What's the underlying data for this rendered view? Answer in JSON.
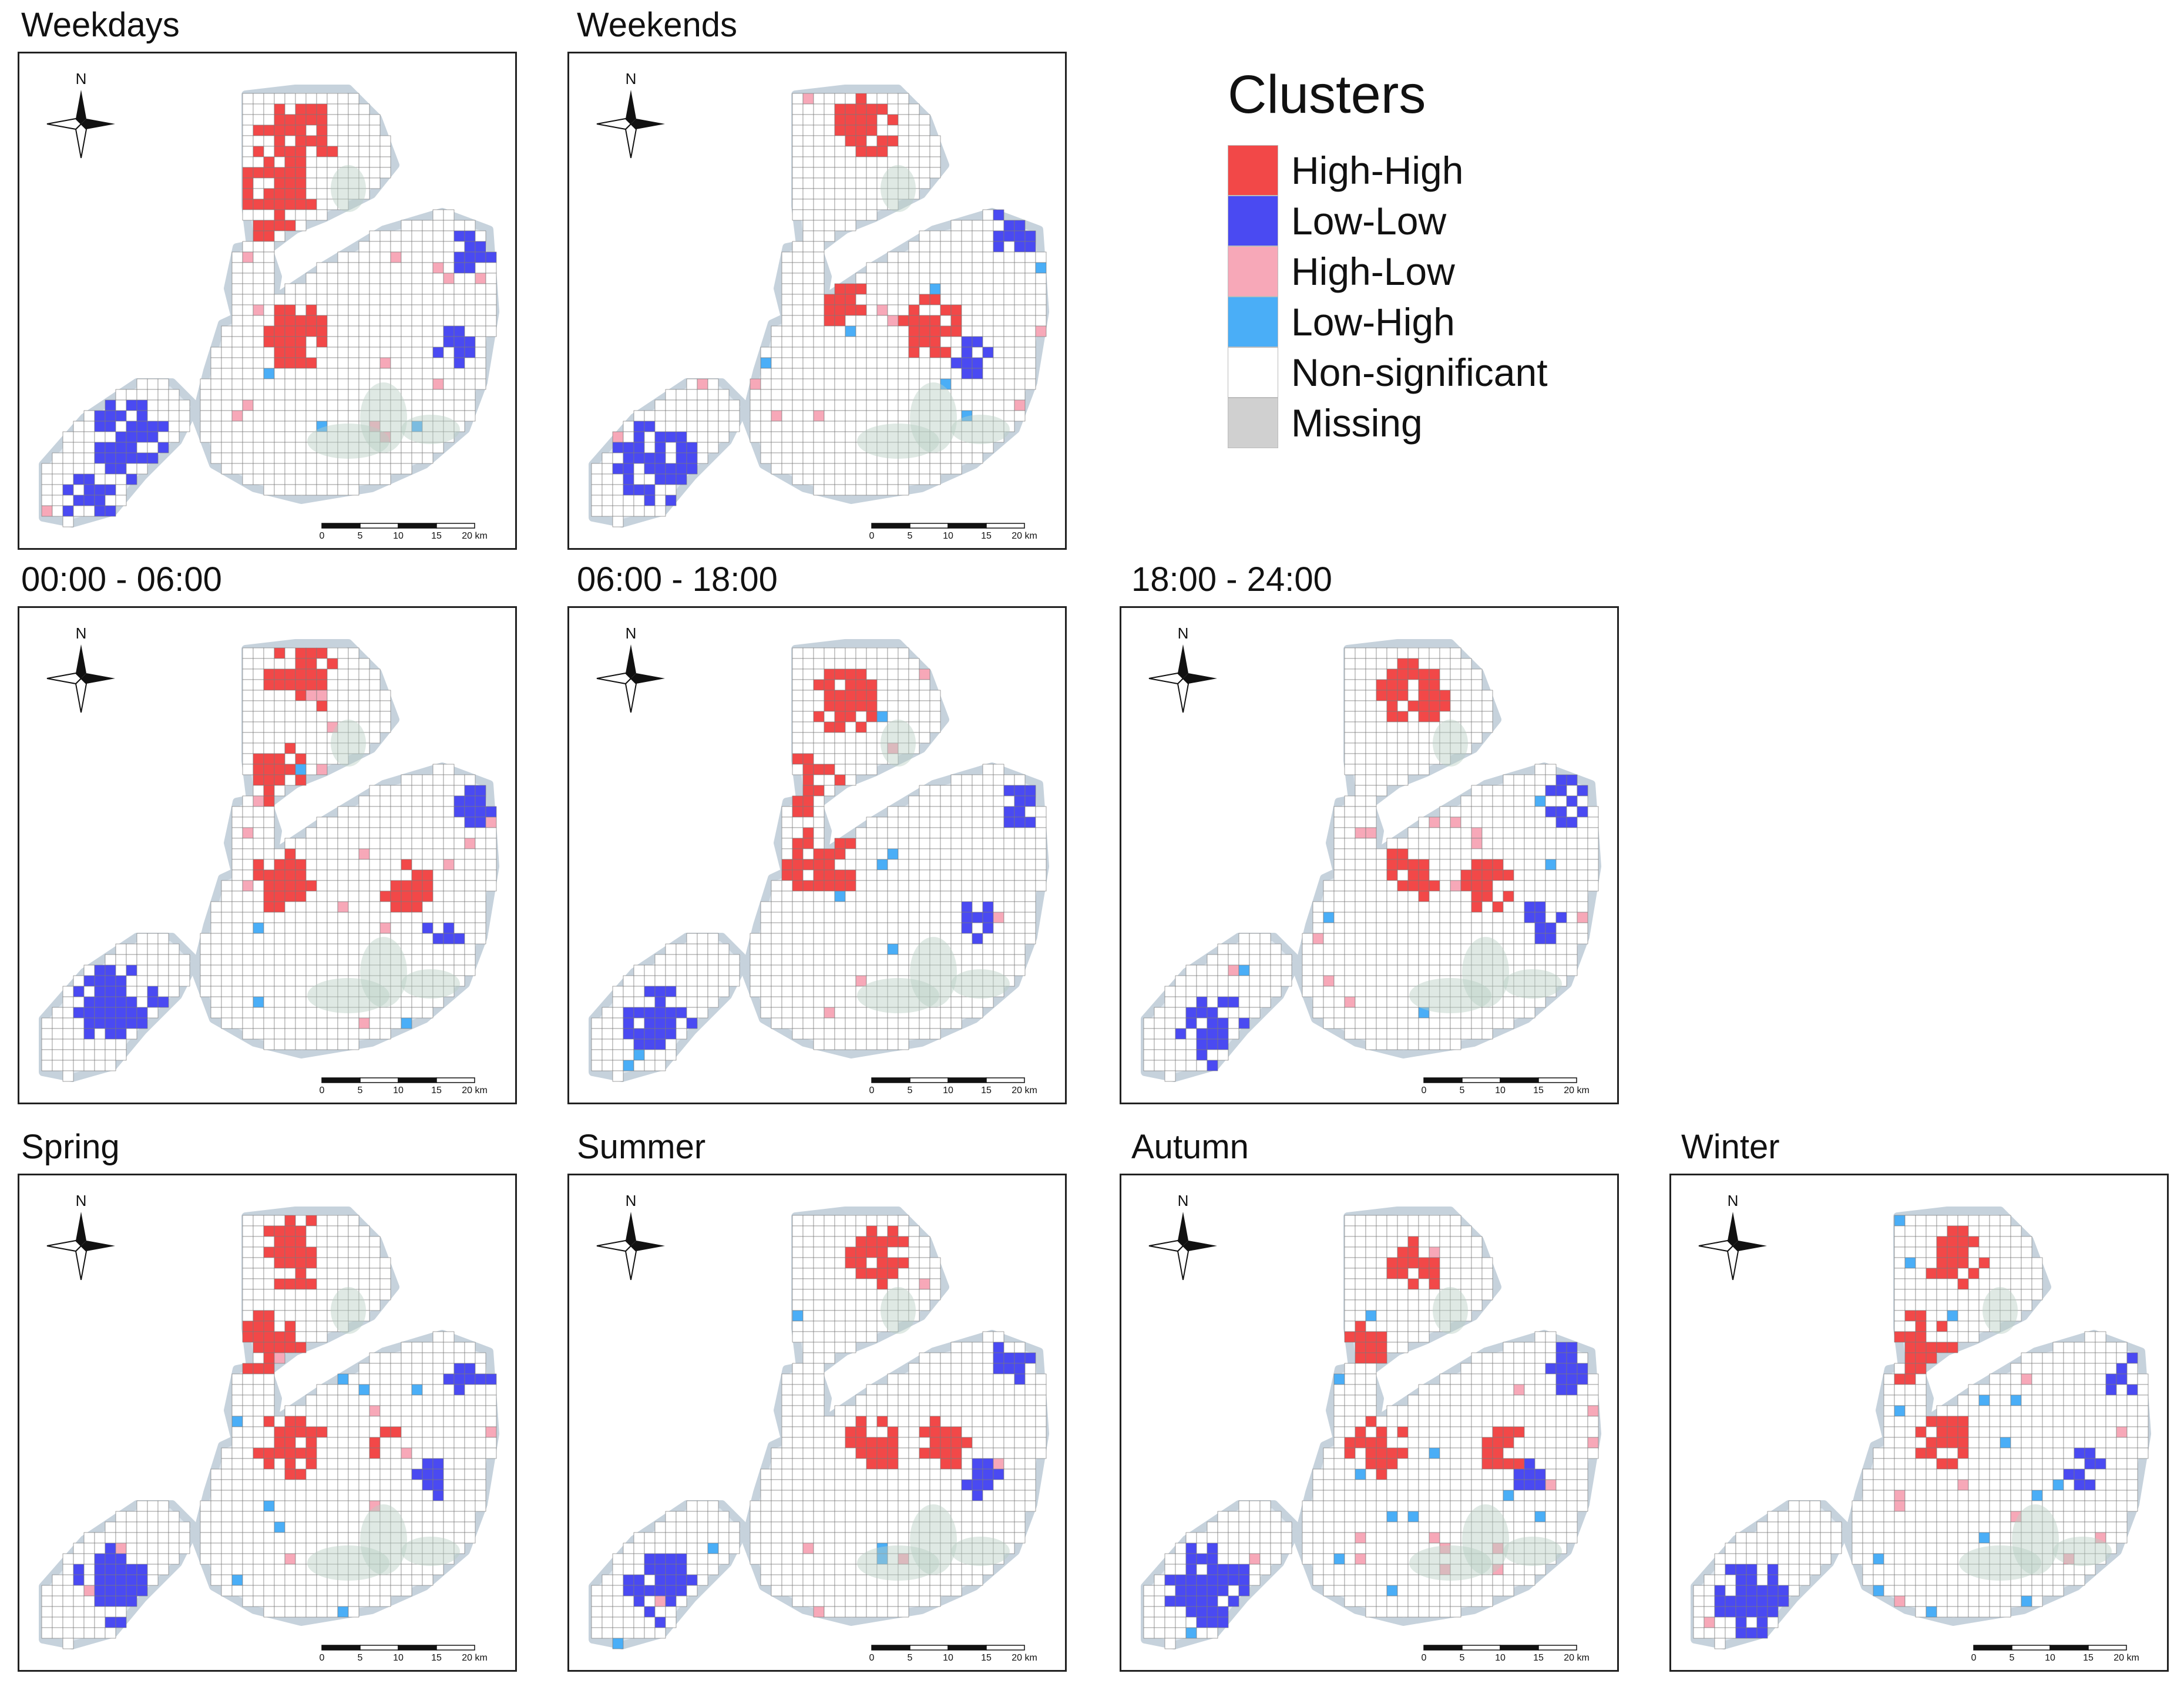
{
  "legend": {
    "title": "Clusters",
    "items": [
      {
        "key": "hh",
        "label": "High-High",
        "color": "#f24848"
      },
      {
        "key": "ll",
        "label": "Low-Low",
        "color": "#4a4af2"
      },
      {
        "key": "hl",
        "label": "High-Low",
        "color": "#f7a8b8"
      },
      {
        "key": "lh",
        "label": "Low-High",
        "color": "#4aaef7"
      },
      {
        "key": "ns",
        "label": "Non-significant",
        "color": "#ffffff"
      },
      {
        "key": "mi",
        "label": "Missing",
        "color": "#d0d0d0"
      }
    ]
  },
  "map_common": {
    "north_label": "N",
    "scalebar_ticks": [
      "0",
      "5",
      "10",
      "15",
      "20 km"
    ]
  },
  "panels": [
    {
      "id": "weekdays",
      "title": "Weekdays",
      "variant": 0
    },
    {
      "id": "weekends",
      "title": "Weekends",
      "variant": 1
    },
    {
      "id": "t0006",
      "title": "00:00 - 06:00",
      "variant": 2
    },
    {
      "id": "t0618",
      "title": "06:00 - 18:00",
      "variant": 3
    },
    {
      "id": "t1824",
      "title": "18:00 - 24:00",
      "variant": 4
    },
    {
      "id": "spring",
      "title": "Spring",
      "variant": 5
    },
    {
      "id": "summer",
      "title": "Summer",
      "variant": 6
    },
    {
      "id": "autumn",
      "title": "Autumn",
      "variant": 7
    },
    {
      "id": "winter",
      "title": "Winter",
      "variant": 8
    }
  ]
}
